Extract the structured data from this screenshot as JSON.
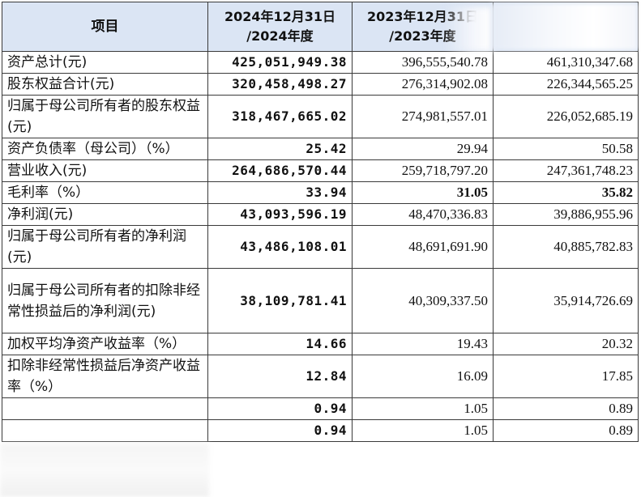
{
  "table": {
    "headers": {
      "item": "项目",
      "col2024_line1": "2024年12月31日",
      "col2024_line2": "/2024年度",
      "col2023_line1": "2023年12月31日",
      "col2023_line2": "/2023年度",
      "col2022": ""
    },
    "rows": [
      {
        "label": "资产总计(元)",
        "v2024": "425,051,949.38",
        "v2023": "396,555,540.78",
        "v2022": "461,310,347.68",
        "h": "h1"
      },
      {
        "label": "股东权益合计(元)",
        "v2024": "320,458,498.27",
        "v2023": "276,314,902.08",
        "v2022": "226,344,565.25",
        "h": "h1"
      },
      {
        "label": "归属于母公司所有者的股东权益(元)",
        "v2024": "318,467,665.02",
        "v2023": "274,981,557.01",
        "v2022": "226,052,685.19",
        "h": "h2"
      },
      {
        "label": "资产负债率（母公司）（%）",
        "v2024": "25.42",
        "v2023": "29.94",
        "v2022": "50.58",
        "h": "h1"
      },
      {
        "label": "营业收入(元)",
        "v2024": "264,686,570.44",
        "v2023": "259,718,797.20",
        "v2022": "247,361,748.23",
        "h": "h1"
      },
      {
        "label": "毛利率（%）",
        "v2024": "33.94",
        "v2023": "31.05",
        "v2022": "35.82",
        "h": "h1",
        "boldAll": true
      },
      {
        "label": "净利润(元)",
        "v2024": "43,093,596.19",
        "v2023": "48,470,336.83",
        "v2022": "39,886,955.96",
        "h": "h1"
      },
      {
        "label": "归属于母公司所有者的净利润(元)",
        "v2024": "43,486,108.01",
        "v2023": "48,691,691.90",
        "v2022": "40,885,782.83",
        "h": "h2"
      },
      {
        "label": "归属于母公司所有者的扣除非经常性损益后的净利润(元)",
        "v2024": "38,109,781.41",
        "v2023": "40,309,337.50",
        "v2022": "35,914,726.69",
        "h": "h3"
      },
      {
        "label": "加权平均净资产收益率（%）",
        "v2024": "14.66",
        "v2023": "19.43",
        "v2022": "20.32",
        "h": "h1"
      },
      {
        "label": "扣除非经常性损益后净资产收益率（%）",
        "v2024": "12.84",
        "v2023": "16.09",
        "v2022": "17.85",
        "h": "h2"
      },
      {
        "label": "",
        "v2024": "0.94",
        "v2023": "1.05",
        "v2022": "0.89",
        "h": "h1"
      },
      {
        "label": "",
        "v2024": "0.94",
        "v2023": "1.05",
        "v2022": "0.89",
        "h": "h1"
      }
    ]
  }
}
